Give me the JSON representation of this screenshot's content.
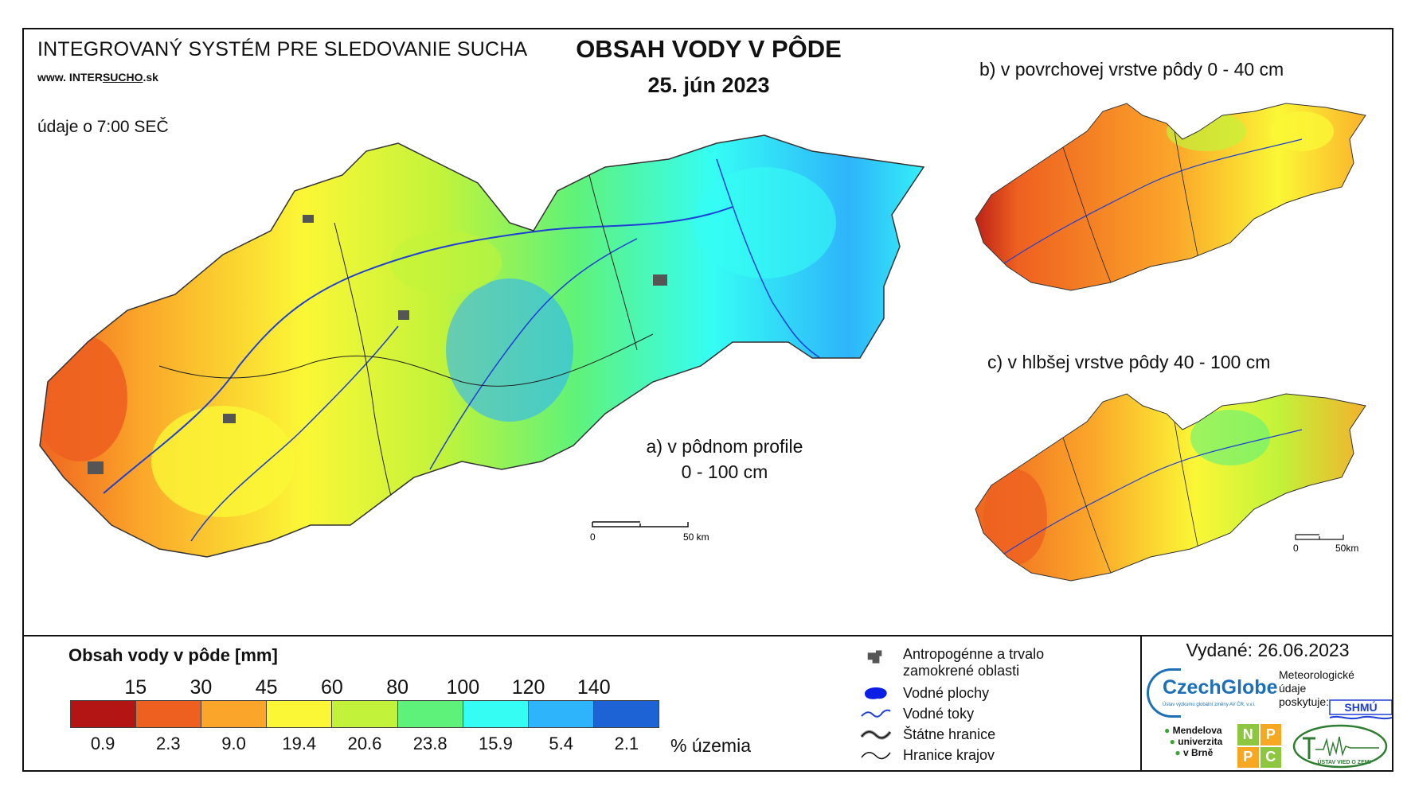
{
  "header": {
    "org_title": "INTEGROVANÝ SYSTÉM PRE SLEDOVANIE SUCHA",
    "url_prefix": "www. INTER",
    "url_underlined": "SUCHO",
    "url_suffix": ".sk",
    "data_time": "údaje o 7:00 SEČ",
    "title": "OBSAH VODY V PÔDE",
    "date": "25. jún 2023"
  },
  "maps": {
    "a_label_line1": "a) v pôdnom profile",
    "a_label_line2": "0 - 100 cm",
    "b_label": "b) v povrchovej vrstve pôdy 0 - 40 cm",
    "c_label": "c) v hlbšej vrstve pôdy 40 - 100 cm",
    "main_scale": {
      "start": "0",
      "end": "50 km"
    },
    "small_scale": {
      "start": "0",
      "end": "50km"
    }
  },
  "legend": {
    "title": "Obsah vody v pôde  [mm]",
    "thresholds": [
      "15",
      "30",
      "45",
      "60",
      "80",
      "100",
      "120",
      "140"
    ],
    "colors": [
      "#b31515",
      "#ee6020",
      "#fba62a",
      "#fbf736",
      "#c2f33a",
      "#5ff27a",
      "#35fdf4",
      "#2eb4fb",
      "#1e63d6"
    ],
    "percentages": [
      "0.9",
      "2.3",
      "9.0",
      "19.4",
      "20.6",
      "23.8",
      "15.9",
      "5.4",
      "2.1"
    ],
    "percent_unit": "% územia"
  },
  "symbols": {
    "anthropogenic_line1": "Antropogénne a trvalo",
    "anthropogenic_line2": "zamokrené oblasti",
    "water_bodies": "Vodné plochy",
    "rivers": "Vodné toky",
    "state_borders": "Štátne hranice",
    "region_borders": "Hranice krajov"
  },
  "footer": {
    "issued": "Vydané: 26.06.2023",
    "czechglobe": "CzechGlobe",
    "czechglobe_sub": "Ústav výzkumu globální změny AV ČR, v.v.i.",
    "meteo_line1": "Meteorologické",
    "meteo_line2": "údaje",
    "meteo_line3": "poskytuje:",
    "shmu": "SHMÚ",
    "mendel_line1": "Mendelova",
    "mendel_line2": "univerzita",
    "mendel_line3": "v Brně",
    "npc": [
      "N",
      "P",
      "P",
      "C"
    ],
    "ustav": "ÚSTAV VIED O ZEMI"
  }
}
